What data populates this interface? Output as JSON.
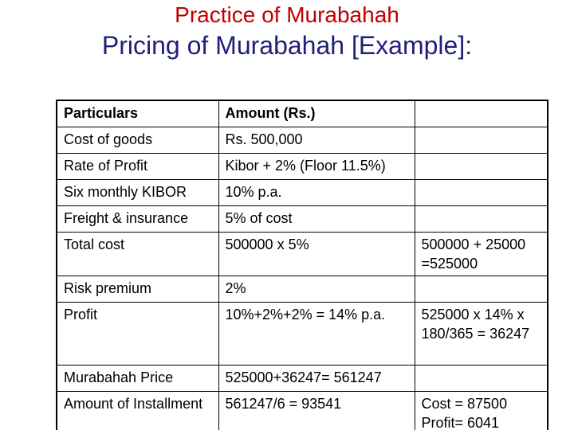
{
  "title": {
    "line1": "Practice of Murabahah",
    "line2": "Pricing of Murabahah [Example]:"
  },
  "table": {
    "header": {
      "col1": "Particulars",
      "col2": "Amount (Rs.)",
      "col3": ""
    },
    "rows": [
      {
        "col1": "Cost of goods",
        "col2": "Rs. 500,000",
        "col3": ""
      },
      {
        "col1": "Rate of Profit",
        "col2": "Kibor + 2% (Floor 11.5%)",
        "col3": ""
      },
      {
        "col1": "Six monthly KIBOR",
        "col2": "10% p.a.",
        "col3": ""
      },
      {
        "col1": "Freight & insurance",
        "col2": "5% of cost",
        "col3": ""
      },
      {
        "col1": "Total cost",
        "col2": "500000 x 5%",
        "col3": "500000 + 25000 =525000"
      },
      {
        "col1": "Risk premium",
        "col2": "2%",
        "col3": ""
      },
      {
        "col1": "Profit",
        "col2": "10%+2%+2% = 14% p.a.",
        "col3": "525000 x 14% x 180/365 = 36247"
      },
      {
        "col1": "Murabahah Price",
        "col2": "525000+36247= 561247",
        "col3": ""
      },
      {
        "col1": "Amount of Installment",
        "col2": "561247/6 = 93541",
        "col3": "Cost = 87500 Profit= 6041"
      }
    ]
  }
}
